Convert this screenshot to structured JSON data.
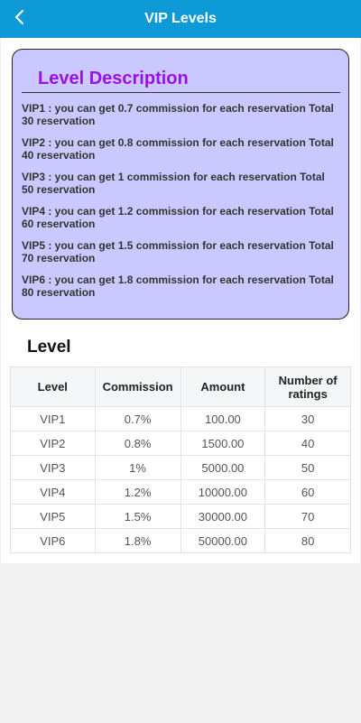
{
  "header": {
    "title": "VIP Levels",
    "back_icon": "chevron-left-icon",
    "background_color": "#0d9ad7"
  },
  "description": {
    "title": "Level Description",
    "title_color": "#9a10e8",
    "card_color": "#c9c9ff",
    "items": [
      "VIP1 : you can get 0.7 commission for each reservation Total 30 reservation",
      "VIP2 : you can get 0.8 commission for each reservation Total 40 reservation",
      "VIP3 : you can get 1 commission for each reservation Total 50 reservation",
      "VIP4 : you can get 1.2 commission for each reservation Total 60 reservation",
      "VIP5 : you can get 1.5 commission for each reservation Total 70 reservation",
      "VIP6 : you can get 1.8 commission for each reservation Total 80 reservation"
    ]
  },
  "level_section": {
    "title": "Level",
    "columns": [
      "Level",
      "Commission",
      "Amount",
      "Number of ratings"
    ],
    "rows": [
      [
        "VIP1",
        "0.7%",
        "100.00",
        "30"
      ],
      [
        "VIP2",
        "0.8%",
        "1500.00",
        "40"
      ],
      [
        "VIP3",
        "1%",
        "5000.00",
        "50"
      ],
      [
        "VIP4",
        "1.2%",
        "10000.00",
        "60"
      ],
      [
        "VIP5",
        "1.5%",
        "30000.00",
        "70"
      ],
      [
        "VIP6",
        "1.8%",
        "50000.00",
        "80"
      ]
    ]
  }
}
